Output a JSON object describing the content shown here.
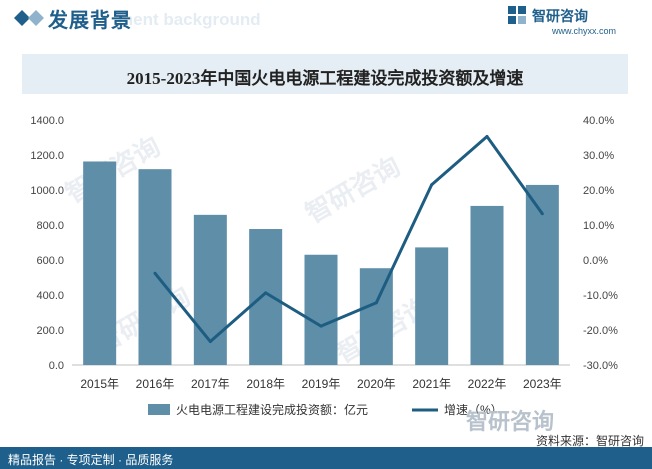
{
  "header": {
    "section_title": "发展背景",
    "bg_word": "ment background",
    "brand_name": "智研咨询",
    "brand_url": "www.chyxx.com"
  },
  "watermark": "智研咨询",
  "chart_data": {
    "type": "bar+line",
    "title": "2015-2023年中国火电电源工程建设完成投资额及增速",
    "categories": [
      "2015年",
      "2016年",
      "2017年",
      "2018年",
      "2019年",
      "2020年",
      "2021年",
      "2022年",
      "2023年"
    ],
    "bars": {
      "name": "火电电源工程建设完成投资额：亿元",
      "values": [
        1163,
        1119,
        858,
        777,
        630,
        553,
        672,
        909,
        1029
      ],
      "axis": "left",
      "ylim": [
        0,
        1400
      ],
      "ticks": [
        "0.0",
        "200.0",
        "400.0",
        "600.0",
        "800.0",
        "1000.0",
        "1200.0",
        "1400.0"
      ],
      "color": "#5e8ea8"
    },
    "line": {
      "name": "增速（%）",
      "values": [
        null,
        -3.8,
        -23.3,
        -9.4,
        -18.9,
        -12.2,
        21.5,
        35.3,
        13.2
      ],
      "axis": "right",
      "ylim": [
        -30,
        40
      ],
      "ticks": [
        "-30.0%",
        "-20.0%",
        "-10.0%",
        "0.0%",
        "10.0%",
        "20.0%",
        "30.0%",
        "40.0%"
      ],
      "color": "#1d5d82"
    },
    "grid": false,
    "legend_position": "bottom"
  },
  "footer": {
    "left": "精品报告 · 专项定制 · 品质服务",
    "source": "资料来源：智研咨询"
  }
}
